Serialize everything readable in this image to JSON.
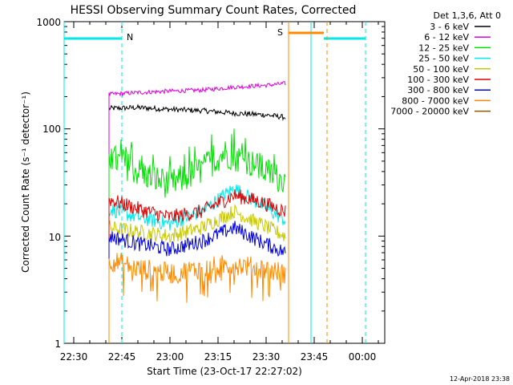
{
  "chart_data": {
    "type": "line",
    "title": "HESSI Observing Summary Count Rates, Corrected",
    "xlabel": "Start Time (23-Oct-17 22:27:02)",
    "ylabel": "Corrected Count Rate (s⁻¹ detector⁻¹)",
    "yscale": "log",
    "ylim": [
      1,
      1000
    ],
    "xlim": [
      "22:27",
      "00:07"
    ],
    "x_ticks": [
      "22:30",
      "22:45",
      "23:00",
      "23:15",
      "23:30",
      "23:45",
      "00:00"
    ],
    "y_ticks": [
      "1",
      "10",
      "100",
      "1000"
    ],
    "grid": false,
    "legend": {
      "placement": "right-outside",
      "header": "Det 1,3,6, Att 0",
      "entries": [
        {
          "label": "3 - 6 keV",
          "color": "#000000"
        },
        {
          "label": "6 - 12 keV",
          "color": "#e000e0"
        },
        {
          "label": "12 - 25 keV",
          "color": "#00e000"
        },
        {
          "label": "25 - 50 keV",
          "color": "#00e8e8"
        },
        {
          "label": "50 - 100 keV",
          "color": "#c8c800"
        },
        {
          "label": "100 - 300 keV",
          "color": "#e00000"
        },
        {
          "label": "300 - 800 keV",
          "color": "#0000e0"
        },
        {
          "label": "800 - 7000 keV",
          "color": "#ff8800"
        },
        {
          "label": "7000 - 20000 keV",
          "color": "#8a5a00"
        }
      ]
    },
    "series": [
      {
        "name": "3 - 6 keV",
        "color": "#000000",
        "level": "high-flat",
        "points": [
          [
            "22:41",
            155
          ],
          [
            "22:50",
            158
          ],
          [
            "23:00",
            152
          ],
          [
            "23:10",
            148
          ],
          [
            "23:20",
            140
          ],
          [
            "23:30",
            135
          ],
          [
            "23:36",
            128
          ]
        ]
      },
      {
        "name": "6 - 12 keV",
        "color": "#e000e0",
        "level": "rising",
        "points": [
          [
            "22:41",
            210
          ],
          [
            "22:50",
            218
          ],
          [
            "23:00",
            225
          ],
          [
            "23:10",
            230
          ],
          [
            "23:20",
            245
          ],
          [
            "23:30",
            255
          ],
          [
            "23:36",
            265
          ]
        ]
      },
      {
        "name": "12 - 25 keV",
        "color": "#00e000",
        "level": "noisy-bump",
        "points": [
          [
            "22:41",
            55
          ],
          [
            "22:50",
            40
          ],
          [
            "23:00",
            30
          ],
          [
            "23:10",
            42
          ],
          [
            "23:17",
            60
          ],
          [
            "23:25",
            48
          ],
          [
            "23:36",
            32
          ]
        ]
      },
      {
        "name": "25 - 50 keV",
        "color": "#00e8e8",
        "level": "bump",
        "points": [
          [
            "22:41",
            18
          ],
          [
            "22:50",
            15
          ],
          [
            "23:00",
            13
          ],
          [
            "23:10",
            17
          ],
          [
            "23:20",
            28
          ],
          [
            "23:28",
            20
          ],
          [
            "23:36",
            14
          ]
        ]
      },
      {
        "name": "50 - 100 keV",
        "color": "#c8c800",
        "level": "bump",
        "points": [
          [
            "22:41",
            12
          ],
          [
            "22:50",
            11
          ],
          [
            "23:00",
            10
          ],
          [
            "23:10",
            12
          ],
          [
            "23:20",
            17
          ],
          [
            "23:28",
            13
          ],
          [
            "23:36",
            10
          ]
        ]
      },
      {
        "name": "100 - 300 keV",
        "color": "#e00000",
        "level": "bump",
        "points": [
          [
            "22:41",
            22
          ],
          [
            "22:50",
            18
          ],
          [
            "23:00",
            15
          ],
          [
            "23:10",
            17
          ],
          [
            "23:20",
            24
          ],
          [
            "23:28",
            21
          ],
          [
            "23:36",
            17
          ]
        ]
      },
      {
        "name": "300 - 800 keV",
        "color": "#0000e0",
        "level": "bump",
        "points": [
          [
            "22:41",
            10
          ],
          [
            "22:50",
            8.5
          ],
          [
            "23:00",
            7.5
          ],
          [
            "23:10",
            9
          ],
          [
            "23:20",
            12
          ],
          [
            "23:28",
            9
          ],
          [
            "23:36",
            7
          ]
        ]
      },
      {
        "name": "800 - 7000 keV",
        "color": "#ff8800",
        "level": "low-noisy",
        "points": [
          [
            "22:41",
            6
          ],
          [
            "22:50",
            5
          ],
          [
            "23:00",
            4.5
          ],
          [
            "23:10",
            5
          ],
          [
            "23:20",
            5.5
          ],
          [
            "23:28",
            5
          ],
          [
            "23:36",
            4.5
          ]
        ]
      }
    ],
    "annotations": [
      {
        "text": "N",
        "color": "#00e8e8"
      },
      {
        "text": "S",
        "color": "#ff8800"
      }
    ],
    "markers": {
      "night_bars": [
        [
          "22:27",
          "22:45"
        ],
        [
          "23:48",
          "00:01"
        ]
      ],
      "night_dashed": [
        "22:45",
        "00:01"
      ],
      "night_solid": [
        "22:27",
        "23:44"
      ],
      "saa_bar": [
        "23:37",
        "23:48"
      ],
      "saa_solid": [
        "23:37"
      ],
      "saa_dashed": [
        "23:49"
      ]
    }
  },
  "footer": {
    "timestamp": "12-Apr-2018 23:38"
  }
}
